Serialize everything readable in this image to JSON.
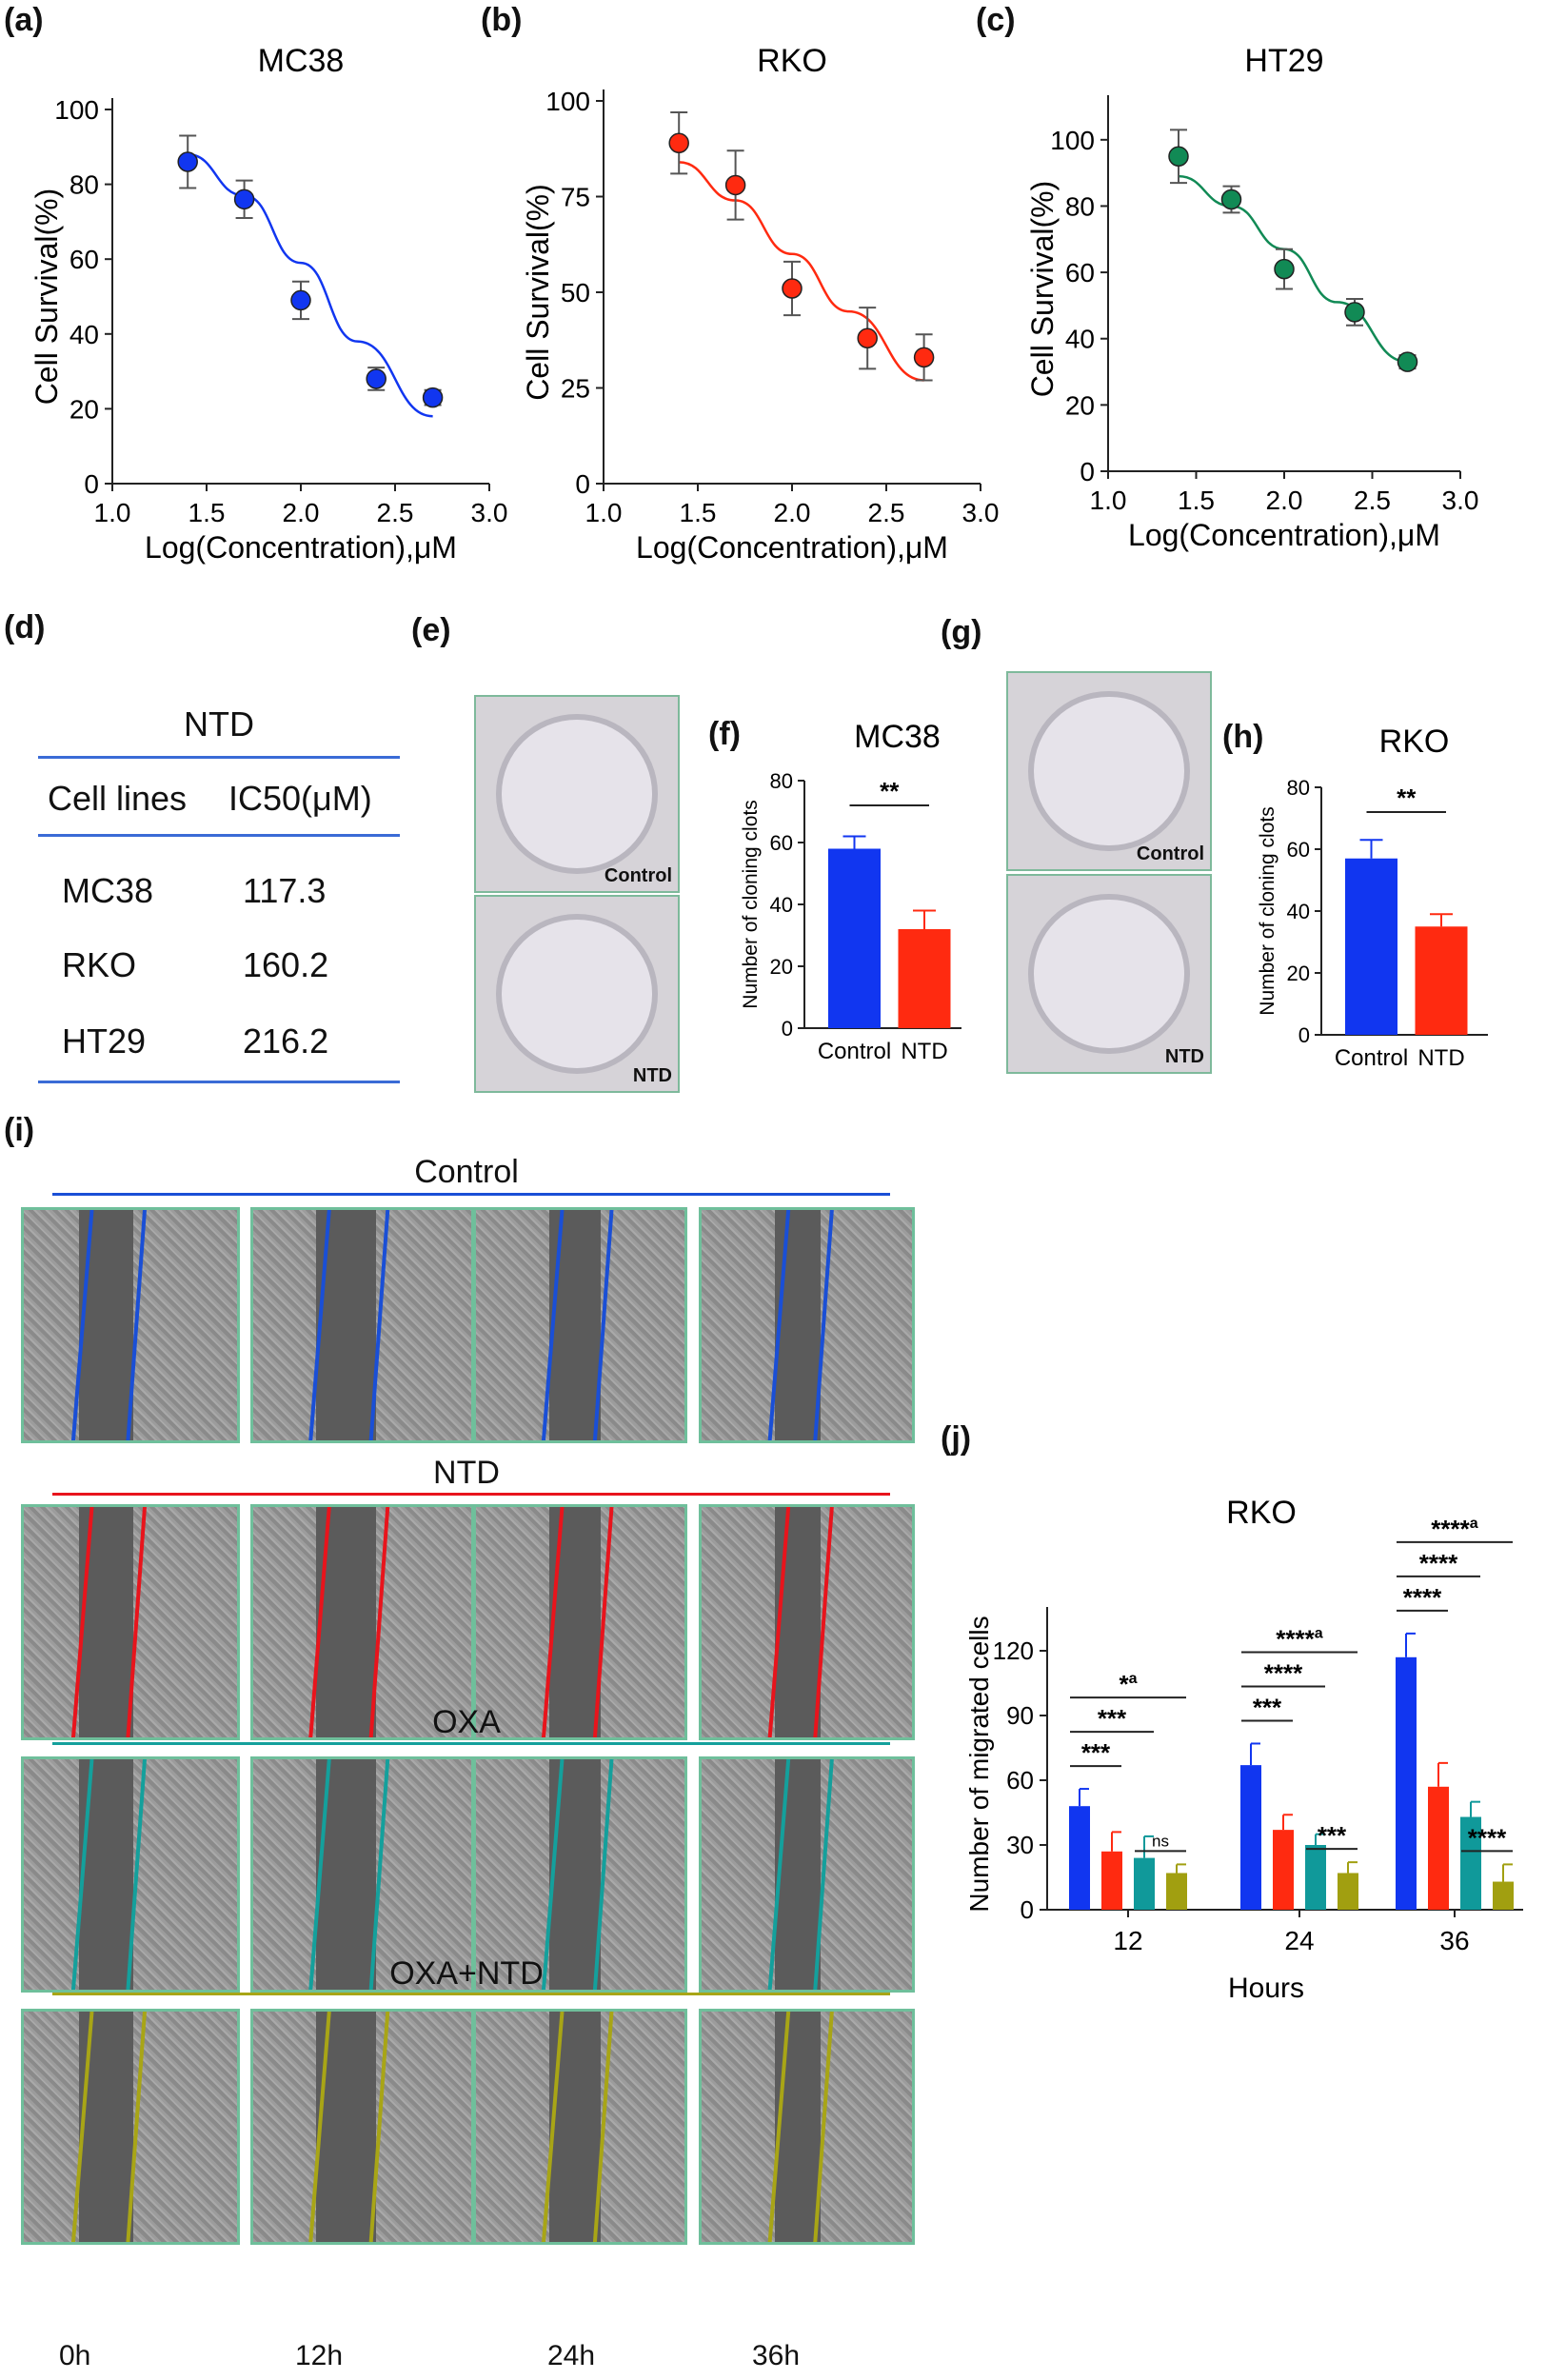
{
  "panel_labels": {
    "a": "(a)",
    "b": "(b)",
    "c": "(c)",
    "d": "(d)",
    "e": "(e)",
    "f": "(f)",
    "g": "(g)",
    "h": "(h)",
    "i": "(i)",
    "j": "(j)"
  },
  "colors": {
    "blue": "#1136f0",
    "red": "#ff2a10",
    "green": "#118a55",
    "teal": "#10999a",
    "olive": "#a19f10",
    "tealline": "#21a3a0",
    "oliveline": "#a8a516"
  },
  "table": {
    "title": "NTD",
    "headers": [
      "Cell lines",
      "IC50(μM)"
    ],
    "rows": [
      {
        "cell": "MC38",
        "ic50": "117.3"
      },
      {
        "cell": "RKO",
        "ic50": "160.2"
      },
      {
        "cell": "HT29",
        "ic50": "216.2"
      }
    ]
  },
  "dishes": {
    "e_top": "Control",
    "e_bottom": "NTD",
    "g_top": "Control",
    "g_bottom": "NTD"
  },
  "wound": {
    "rows": [
      {
        "title": "Control",
        "color": "#1a4fd6"
      },
      {
        "title": "NTD",
        "color": "#e8141c"
      },
      {
        "title": "OXA",
        "color": "#14a09c"
      },
      {
        "title": "OXA+NTD",
        "color": "#a8a516"
      }
    ],
    "time_labels": [
      "0h",
      "12h",
      "24h",
      "36h"
    ]
  },
  "chart_data": [
    {
      "id": "a",
      "type": "scatter",
      "title": "MC38",
      "xlabel": "Log(Concentration),μM",
      "ylabel": "Cell Survival(%)",
      "xlim": [
        1.0,
        3.0
      ],
      "ylim": [
        0,
        100
      ],
      "xticks": [
        "1.0",
        "1.5",
        "2.0",
        "2.5",
        "3.0"
      ],
      "yticks": [
        "0",
        "20",
        "40",
        "60",
        "80",
        "100"
      ],
      "x": [
        1.4,
        1.7,
        2.0,
        2.4,
        2.7
      ],
      "y": [
        86,
        76,
        49,
        28,
        23
      ],
      "err": [
        7,
        5,
        5,
        3,
        2
      ],
      "fit": [
        [
          1.4,
          88
        ],
        [
          1.7,
          77
        ],
        [
          2.0,
          59
        ],
        [
          2.3,
          38
        ],
        [
          2.7,
          18
        ]
      ],
      "color": "#1136f0"
    },
    {
      "id": "b",
      "type": "scatter",
      "title": "RKO",
      "xlabel": "Log(Concentration),μM",
      "ylabel": "Cell Survival(%)",
      "xlim": [
        1.0,
        3.0
      ],
      "ylim": [
        0,
        100
      ],
      "xticks": [
        "1.0",
        "1.5",
        "2.0",
        "2.5",
        "3.0"
      ],
      "yticks": [
        "0",
        "25",
        "50",
        "75",
        "100"
      ],
      "x": [
        1.4,
        1.7,
        2.0,
        2.4,
        2.7
      ],
      "y": [
        89,
        78,
        51,
        38,
        33
      ],
      "err": [
        8,
        9,
        7,
        8,
        6
      ],
      "fit": [
        [
          1.4,
          84
        ],
        [
          1.7,
          74
        ],
        [
          2.0,
          60
        ],
        [
          2.3,
          45
        ],
        [
          2.7,
          27
        ]
      ],
      "color": "#ff2a10"
    },
    {
      "id": "c",
      "type": "scatter",
      "title": "HT29",
      "xlabel": "Log(Concentration),μM",
      "ylabel": "Cell Survival(%)",
      "xlim": [
        1.0,
        3.0
      ],
      "ylim": [
        0,
        110
      ],
      "xticks": [
        "1.0",
        "1.5",
        "2.0",
        "2.5",
        "3.0"
      ],
      "yticks": [
        "0",
        "20",
        "40",
        "60",
        "80",
        "100"
      ],
      "x": [
        1.4,
        1.7,
        2.0,
        2.4,
        2.7
      ],
      "y": [
        95,
        82,
        61,
        48,
        33
      ],
      "err": [
        8,
        4,
        6,
        4,
        2
      ],
      "fit": [
        [
          1.4,
          89
        ],
        [
          1.7,
          80
        ],
        [
          2.0,
          67
        ],
        [
          2.3,
          51
        ],
        [
          2.7,
          33
        ]
      ],
      "color": "#118a55"
    },
    {
      "id": "f",
      "type": "bar",
      "title": "MC38",
      "ylabel": "Number of cloning clots",
      "ylim": [
        0,
        80
      ],
      "yticks": [
        "0",
        "20",
        "40",
        "60",
        "80"
      ],
      "categories": [
        "Control",
        "NTD"
      ],
      "values": [
        58,
        32
      ],
      "err": [
        4,
        6
      ],
      "colors": [
        "#1136f0",
        "#ff2a10"
      ],
      "sig": "**"
    },
    {
      "id": "h",
      "type": "bar",
      "title": "RKO",
      "ylabel": "Number of cloning clots",
      "ylim": [
        0,
        80
      ],
      "yticks": [
        "0",
        "20",
        "40",
        "60",
        "80"
      ],
      "categories": [
        "Control",
        "NTD"
      ],
      "values": [
        57,
        35
      ],
      "err": [
        6,
        4
      ],
      "colors": [
        "#1136f0",
        "#ff2a10"
      ],
      "sig": "**"
    },
    {
      "id": "j",
      "type": "bar",
      "title": "RKO",
      "xlabel": "Hours",
      "ylabel": "Number of migrated cells",
      "ylim": [
        0,
        135
      ],
      "yticks": [
        "0",
        "30",
        "60",
        "90",
        "120"
      ],
      "categories": [
        "12",
        "24",
        "36"
      ],
      "series": [
        {
          "name": "Control",
          "values": [
            48,
            67,
            117
          ],
          "err": [
            8,
            10,
            11
          ],
          "color": "#1136f0"
        },
        {
          "name": "NTD",
          "values": [
            27,
            37,
            57
          ],
          "err": [
            9,
            7,
            11
          ],
          "color": "#ff2a10"
        },
        {
          "name": "OXA",
          "values": [
            24,
            30,
            43
          ],
          "err": [
            10,
            5,
            7
          ],
          "color": "#10999a"
        },
        {
          "name": "OXA+NTD",
          "values": [
            17,
            17,
            13
          ],
          "err": [
            4,
            5,
            8
          ],
          "color": "#a19f10"
        }
      ],
      "annotations": [
        {
          "group": 0,
          "from": 0,
          "to": 1,
          "level": 0,
          "text": "***"
        },
        {
          "group": 0,
          "from": 0,
          "to": 2,
          "level": 1,
          "text": "***"
        },
        {
          "group": 0,
          "from": 0,
          "to": 3,
          "level": 2,
          "text": "*",
          "sup": "a"
        },
        {
          "group": 0,
          "from": 2,
          "to": 3,
          "level": -1,
          "text": "ns"
        },
        {
          "group": 1,
          "from": 0,
          "to": 1,
          "level": 0,
          "text": "***"
        },
        {
          "group": 1,
          "from": 0,
          "to": 2,
          "level": 1,
          "text": "****"
        },
        {
          "group": 1,
          "from": 0,
          "to": 3,
          "level": 2,
          "text": "****",
          "sup": "a"
        },
        {
          "group": 1,
          "from": 2,
          "to": 3,
          "level": -1,
          "text": "***"
        },
        {
          "group": 2,
          "from": 0,
          "to": 1,
          "level": 0,
          "text": "****"
        },
        {
          "group": 2,
          "from": 0,
          "to": 2,
          "level": 1,
          "text": "****"
        },
        {
          "group": 2,
          "from": 0,
          "to": 3,
          "level": 2,
          "text": "****",
          "sup": "a"
        },
        {
          "group": 2,
          "from": 2,
          "to": 3,
          "level": -1,
          "text": "****"
        }
      ]
    }
  ]
}
